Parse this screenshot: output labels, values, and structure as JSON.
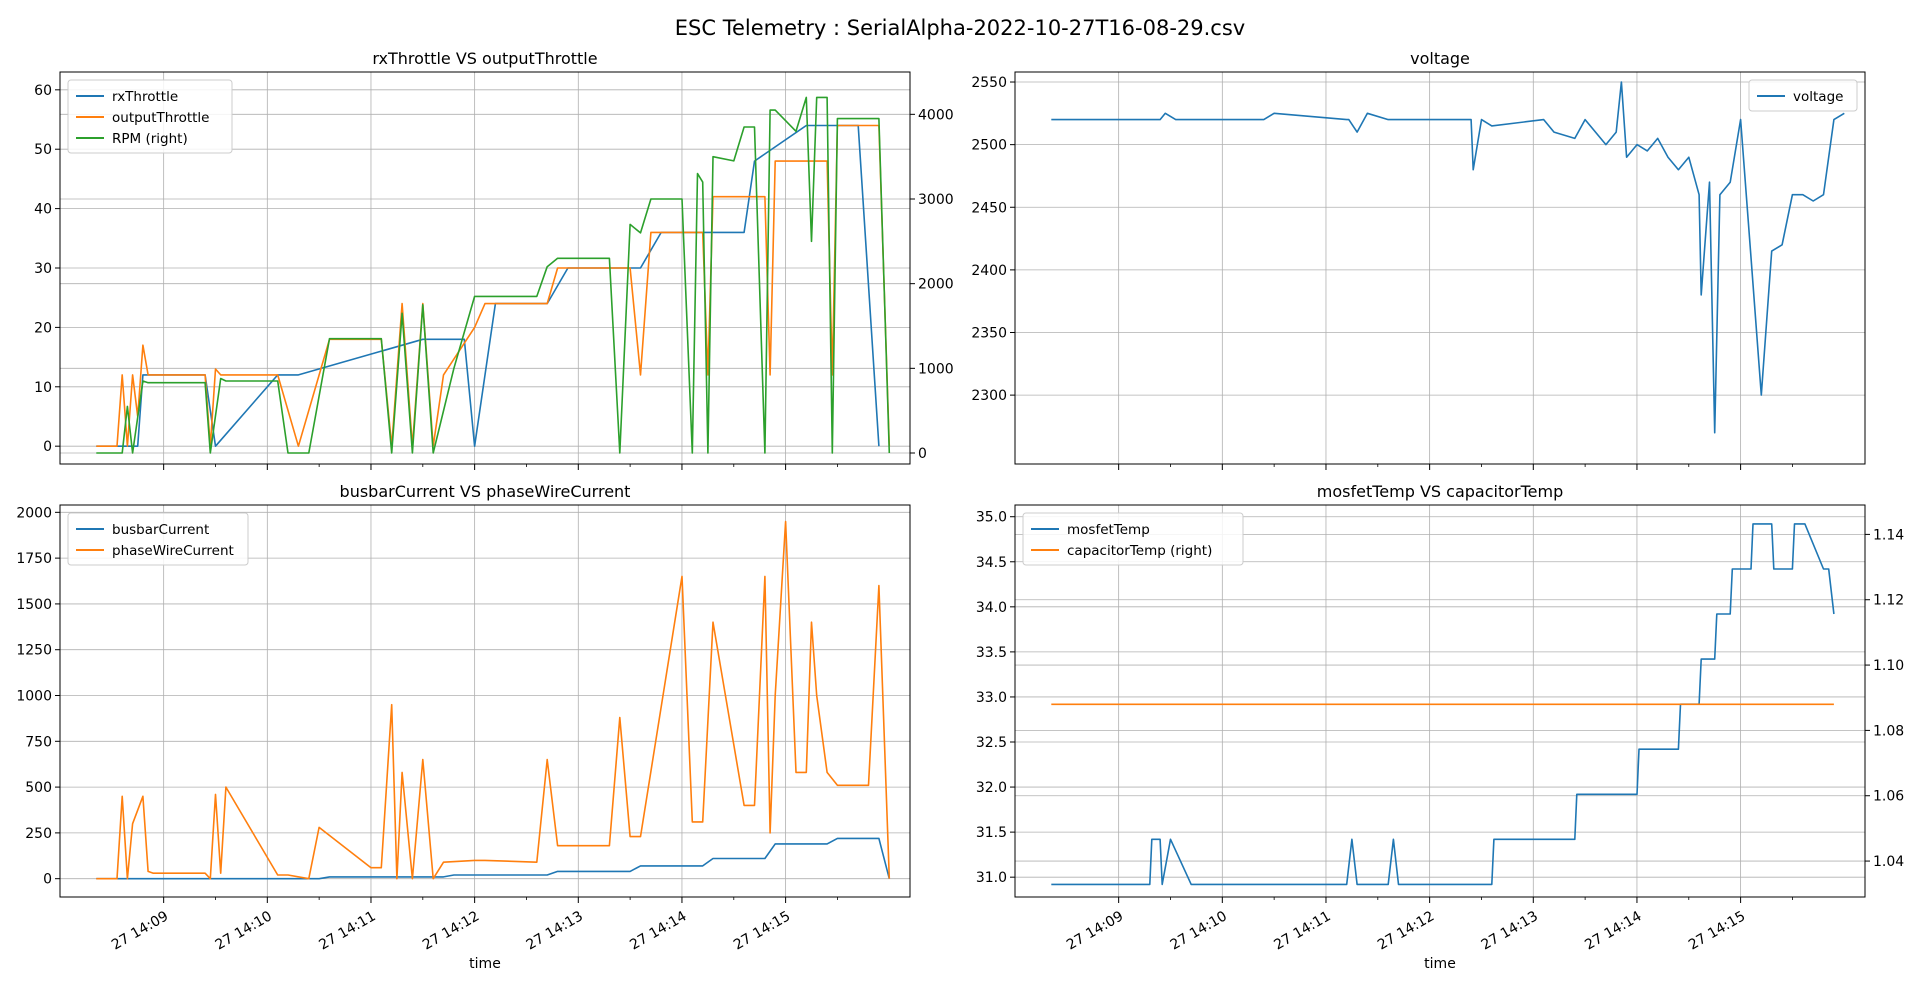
{
  "figure": {
    "title": "ESC Telemetry : SerialAlpha-2022-10-27T16-08-29.csv"
  },
  "colors": {
    "c0": "#1f77b4",
    "c1": "#ff7f0e",
    "c2": "#2ca02c",
    "grid": "#b0b0b0"
  },
  "chart_data": [
    {
      "id": "throttle",
      "type": "line",
      "title": "rxThrottle VS outputThrottle",
      "xlabel": "",
      "xlim": [
        0,
        8.2
      ],
      "ylim": [
        -3,
        63
      ],
      "y2lim": [
        -130,
        4500
      ],
      "yticks": [
        0,
        10,
        20,
        30,
        40,
        50,
        60
      ],
      "y2ticks": [
        0,
        1000,
        2000,
        3000,
        4000
      ],
      "grid": true,
      "legend": "upper-left",
      "series": [
        {
          "name": "rxThrottle",
          "axis": "left",
          "color": "#1f77b4",
          "x": [
            0.35,
            0.75,
            0.8,
            1.4,
            1.5,
            2.1,
            2.3,
            3.5,
            3.9,
            4.0,
            4.2,
            4.7,
            4.9,
            5.6,
            5.8,
            6.6,
            6.7,
            7.2,
            7.7,
            7.9
          ],
          "y": [
            0,
            0,
            12,
            12,
            0,
            12,
            12,
            18,
            18,
            0,
            24,
            24,
            30,
            30,
            36,
            36,
            48,
            54,
            54,
            0
          ]
        },
        {
          "name": "outputThrottle",
          "axis": "left",
          "color": "#ff7f0e",
          "x": [
            0.35,
            0.55,
            0.6,
            0.65,
            0.7,
            0.75,
            0.8,
            0.85,
            0.9,
            1.4,
            1.45,
            1.5,
            1.55,
            2.1,
            2.3,
            2.6,
            3.1,
            3.2,
            3.3,
            3.4,
            3.5,
            3.6,
            3.7,
            4.0,
            4.1,
            4.7,
            4.8,
            5.5,
            5.6,
            5.7,
            6.2,
            6.25,
            6.3,
            6.8,
            6.85,
            6.9,
            7.4,
            7.45,
            7.5,
            7.9,
            8.0
          ],
          "y": [
            0,
            0,
            12,
            0,
            12,
            5,
            17,
            12,
            12,
            12,
            0,
            13,
            12,
            12,
            0,
            18,
            18,
            0,
            24,
            0,
            24,
            0,
            12,
            20,
            24,
            24,
            30,
            30,
            12,
            36,
            36,
            12,
            42,
            42,
            12,
            48,
            48,
            12,
            54,
            54,
            0
          ]
        },
        {
          "name": "RPM",
          "axis": "right",
          "color": "#2ca02c",
          "x": [
            0.35,
            0.6,
            0.65,
            0.7,
            0.8,
            0.85,
            1.4,
            1.45,
            1.55,
            1.6,
            2.1,
            2.2,
            2.4,
            2.6,
            3.1,
            3.2,
            3.3,
            3.4,
            3.5,
            3.6,
            3.8,
            4.0,
            4.1,
            4.6,
            4.7,
            4.8,
            5.3,
            5.4,
            5.5,
            5.6,
            5.7,
            6.0,
            6.1,
            6.15,
            6.2,
            6.25,
            6.3,
            6.5,
            6.6,
            6.7,
            6.8,
            6.85,
            6.9,
            7.1,
            7.2,
            7.25,
            7.3,
            7.4,
            7.45,
            7.5,
            7.9,
            8.0
          ],
          "y": [
            0,
            0,
            550,
            0,
            850,
            830,
            830,
            0,
            880,
            850,
            850,
            0,
            0,
            1350,
            1350,
            0,
            1650,
            0,
            1750,
            0,
            1000,
            1850,
            1850,
            1850,
            2200,
            2300,
            2300,
            0,
            2700,
            2600,
            3000,
            3000,
            0,
            3300,
            3200,
            0,
            3500,
            3450,
            3850,
            3850,
            0,
            4050,
            4050,
            3800,
            4200,
            2500,
            4200,
            4200,
            0,
            3950,
            3950,
            0
          ]
        }
      ]
    },
    {
      "id": "voltage",
      "type": "line",
      "title": "voltage",
      "xlabel": "",
      "xlim": [
        0,
        8.2
      ],
      "ylim": [
        2245,
        2558
      ],
      "yticks": [
        2300,
        2350,
        2400,
        2450,
        2500,
        2550
      ],
      "grid": true,
      "legend": "upper-right",
      "series": [
        {
          "name": "voltage",
          "axis": "left",
          "color": "#1f77b4",
          "x": [
            0.35,
            1.4,
            1.45,
            1.55,
            2.4,
            2.5,
            3.2,
            3.22,
            3.3,
            3.4,
            3.6,
            4.4,
            4.42,
            4.5,
            4.6,
            5.1,
            5.2,
            5.4,
            5.5,
            5.7,
            5.8,
            5.85,
            5.9,
            6.0,
            6.1,
            6.2,
            6.3,
            6.4,
            6.5,
            6.6,
            6.62,
            6.7,
            6.75,
            6.8,
            6.9,
            7.0,
            7.1,
            7.2,
            7.3,
            7.4,
            7.5,
            7.6,
            7.7,
            7.8,
            7.9,
            8.0
          ],
          "y": [
            2520,
            2520,
            2525,
            2520,
            2520,
            2525,
            2520,
            2520,
            2510,
            2525,
            2520,
            2520,
            2480,
            2520,
            2515,
            2520,
            2510,
            2505,
            2520,
            2500,
            2510,
            2550,
            2490,
            2500,
            2495,
            2505,
            2490,
            2480,
            2490,
            2460,
            2380,
            2470,
            2270,
            2460,
            2470,
            2520,
            2410,
            2300,
            2415,
            2420,
            2460,
            2460,
            2455,
            2460,
            2520,
            2525
          ]
        }
      ]
    },
    {
      "id": "current",
      "type": "line",
      "title": "busbarCurrent VS phaseWireCurrent",
      "xlabel": "time",
      "xlim": [
        0,
        8.2
      ],
      "ylim": [
        -100,
        2040
      ],
      "yticks": [
        0,
        250,
        500,
        750,
        1000,
        1250,
        1500,
        1750,
        2000
      ],
      "xticks": [
        "27 14:09",
        "27 14:10",
        "27 14:11",
        "27 14:12",
        "27 14:13",
        "27 14:14",
        "27 14:15"
      ],
      "grid": true,
      "legend": "upper-left",
      "series": [
        {
          "name": "busbarCurrent",
          "axis": "left",
          "color": "#1f77b4",
          "x": [
            0.35,
            2.5,
            2.6,
            3.7,
            3.8,
            4.7,
            4.8,
            5.5,
            5.6,
            6.2,
            6.3,
            6.8,
            6.9,
            7.4,
            7.5,
            7.9,
            8.0
          ],
          "y": [
            0,
            0,
            10,
            10,
            20,
            20,
            40,
            40,
            70,
            70,
            110,
            110,
            190,
            190,
            220,
            220,
            0
          ]
        },
        {
          "name": "phaseWireCurrent",
          "axis": "left",
          "color": "#ff7f0e",
          "x": [
            0.35,
            0.55,
            0.6,
            0.65,
            0.7,
            0.8,
            0.85,
            0.9,
            1.4,
            1.45,
            1.5,
            1.55,
            1.6,
            2.1,
            2.2,
            2.4,
            2.5,
            3.0,
            3.1,
            3.2,
            3.25,
            3.3,
            3.4,
            3.5,
            3.6,
            3.7,
            4.0,
            4.1,
            4.6,
            4.7,
            4.8,
            5.3,
            5.4,
            5.5,
            5.6,
            6.0,
            6.1,
            6.2,
            6.3,
            6.6,
            6.7,
            6.8,
            6.85,
            6.9,
            7.0,
            7.1,
            7.2,
            7.25,
            7.3,
            7.4,
            7.5,
            7.8,
            7.9,
            8.0
          ],
          "y": [
            0,
            0,
            450,
            0,
            300,
            450,
            40,
            30,
            30,
            0,
            460,
            30,
            500,
            20,
            20,
            0,
            280,
            60,
            60,
            950,
            0,
            580,
            0,
            650,
            0,
            90,
            100,
            100,
            90,
            650,
            180,
            180,
            880,
            230,
            230,
            1650,
            310,
            310,
            1400,
            400,
            400,
            1650,
            250,
            1000,
            1950,
            580,
            580,
            1400,
            1000,
            580,
            510,
            510,
            1600,
            0
          ]
        }
      ]
    },
    {
      "id": "temperature",
      "type": "line",
      "title": "mosfetTemp VS capacitorTemp",
      "xlabel": "time",
      "xlim": [
        0,
        8.2
      ],
      "ylim": [
        30.78,
        35.13
      ],
      "y2lim": [
        1.029,
        1.149
      ],
      "yticks": [
        31.0,
        31.5,
        32.0,
        32.5,
        33.0,
        33.5,
        34.0,
        34.5,
        35.0
      ],
      "y2ticks": [
        1.04,
        1.06,
        1.08,
        1.1,
        1.12,
        1.14
      ],
      "xticks": [
        "27 14:09",
        "27 14:10",
        "27 14:11",
        "27 14:12",
        "27 14:13",
        "27 14:14",
        "27 14:15"
      ],
      "grid": true,
      "legend": "upper-left",
      "series": [
        {
          "name": "mosfetTemp",
          "axis": "left",
          "color": "#1f77b4",
          "x": [
            0.35,
            1.3,
            1.32,
            1.4,
            1.42,
            1.5,
            1.7,
            3.2,
            3.25,
            3.3,
            3.6,
            3.65,
            3.7,
            4.6,
            4.62,
            5.4,
            5.42,
            6.0,
            6.02,
            6.4,
            6.42,
            6.6,
            6.62,
            6.75,
            6.77,
            6.9,
            6.92,
            7.1,
            7.12,
            7.3,
            7.32,
            7.5,
            7.52,
            7.6,
            7.62,
            7.8,
            7.85,
            7.9
          ],
          "y": [
            30.92,
            30.92,
            31.42,
            31.42,
            30.92,
            31.42,
            30.92,
            30.92,
            31.42,
            30.92,
            30.92,
            31.42,
            30.92,
            30.92,
            31.42,
            31.42,
            31.92,
            31.92,
            32.42,
            32.42,
            32.92,
            32.92,
            33.42,
            33.42,
            33.92,
            33.92,
            34.42,
            34.42,
            34.92,
            34.92,
            34.42,
            34.42,
            34.92,
            34.92,
            34.92,
            34.42,
            34.42,
            33.92
          ]
        },
        {
          "name": "capacitorTemp",
          "axis": "right",
          "color": "#ff7f0e",
          "x": [
            0.35,
            7.9
          ],
          "y": [
            1.088,
            1.088
          ]
        }
      ]
    }
  ]
}
